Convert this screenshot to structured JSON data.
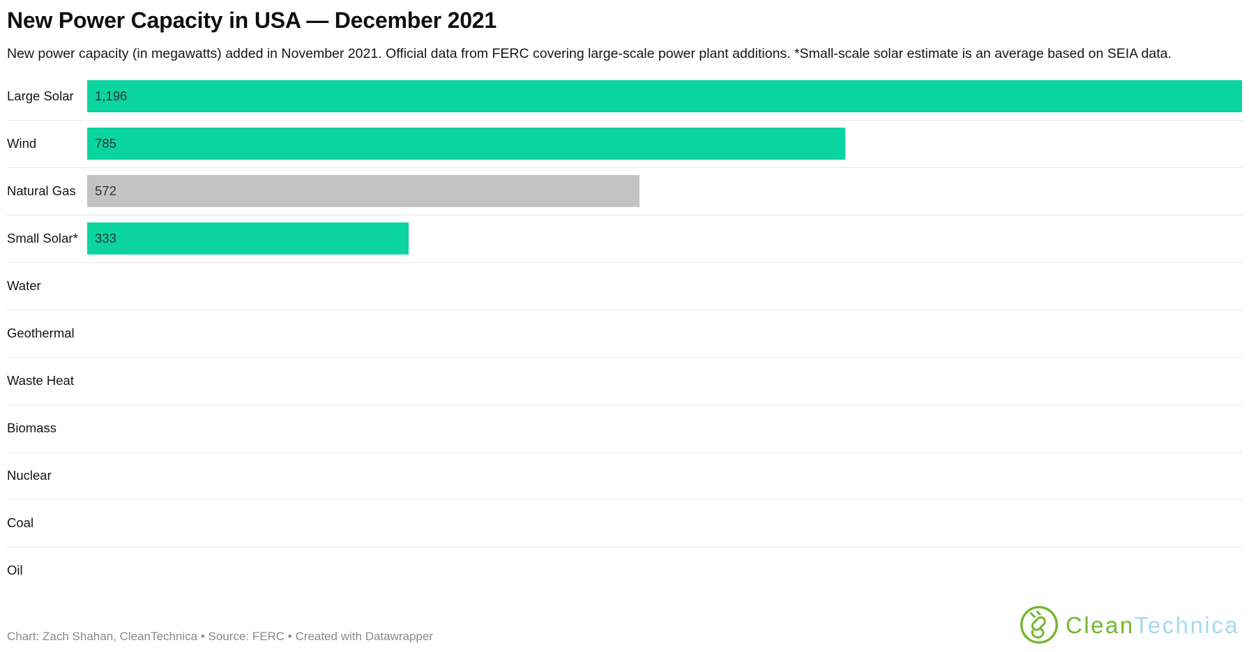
{
  "header": {
    "title": "New Power Capacity in USA — December 2021",
    "subtitle": "New power capacity (in megawatts) added in November 2021. Official data from FERC covering large-scale power plant additions. *Small-scale solar estimate is an average based on SEIA data."
  },
  "chart_data": {
    "type": "bar",
    "orientation": "horizontal",
    "title": "New Power Capacity in USA — December 2021",
    "xlabel": "",
    "ylabel": "",
    "unit": "megawatts (MW)",
    "xmax": 1196,
    "grid": false,
    "legend": "none",
    "categories": [
      "Large Solar",
      "Wind",
      "Natural Gas",
      "Small Solar*",
      "Water",
      "Geothermal",
      "Waste Heat",
      "Biomass",
      "Nuclear",
      "Coal",
      "Oil"
    ],
    "values": [
      1196,
      785,
      572,
      333,
      0,
      0,
      0,
      0,
      0,
      0,
      0
    ],
    "value_labels": [
      "1,196",
      "785",
      "572",
      "333",
      "",
      "",
      "",
      "",
      "",
      "",
      ""
    ],
    "bar_colors": [
      "#0bd4a1",
      "#0bd4a1",
      "#c2c2c2",
      "#0bd4a1",
      "",
      "",
      "",
      "",
      "",
      "",
      ""
    ]
  },
  "footer": {
    "attribution": "Chart: Zach Shahan, CleanTechnica • Source: FERC • Created with Datawrapper",
    "logo": {
      "text_green": "Clean",
      "text_blue": "Technica"
    }
  },
  "colors": {
    "bar_green": "#0bd4a1",
    "bar_gray": "#c2c2c2",
    "row_separator": "#cccccc",
    "attribution_text": "#8a8a8a",
    "logo_green": "#74b62e",
    "logo_blue": "#a5d8f3"
  }
}
